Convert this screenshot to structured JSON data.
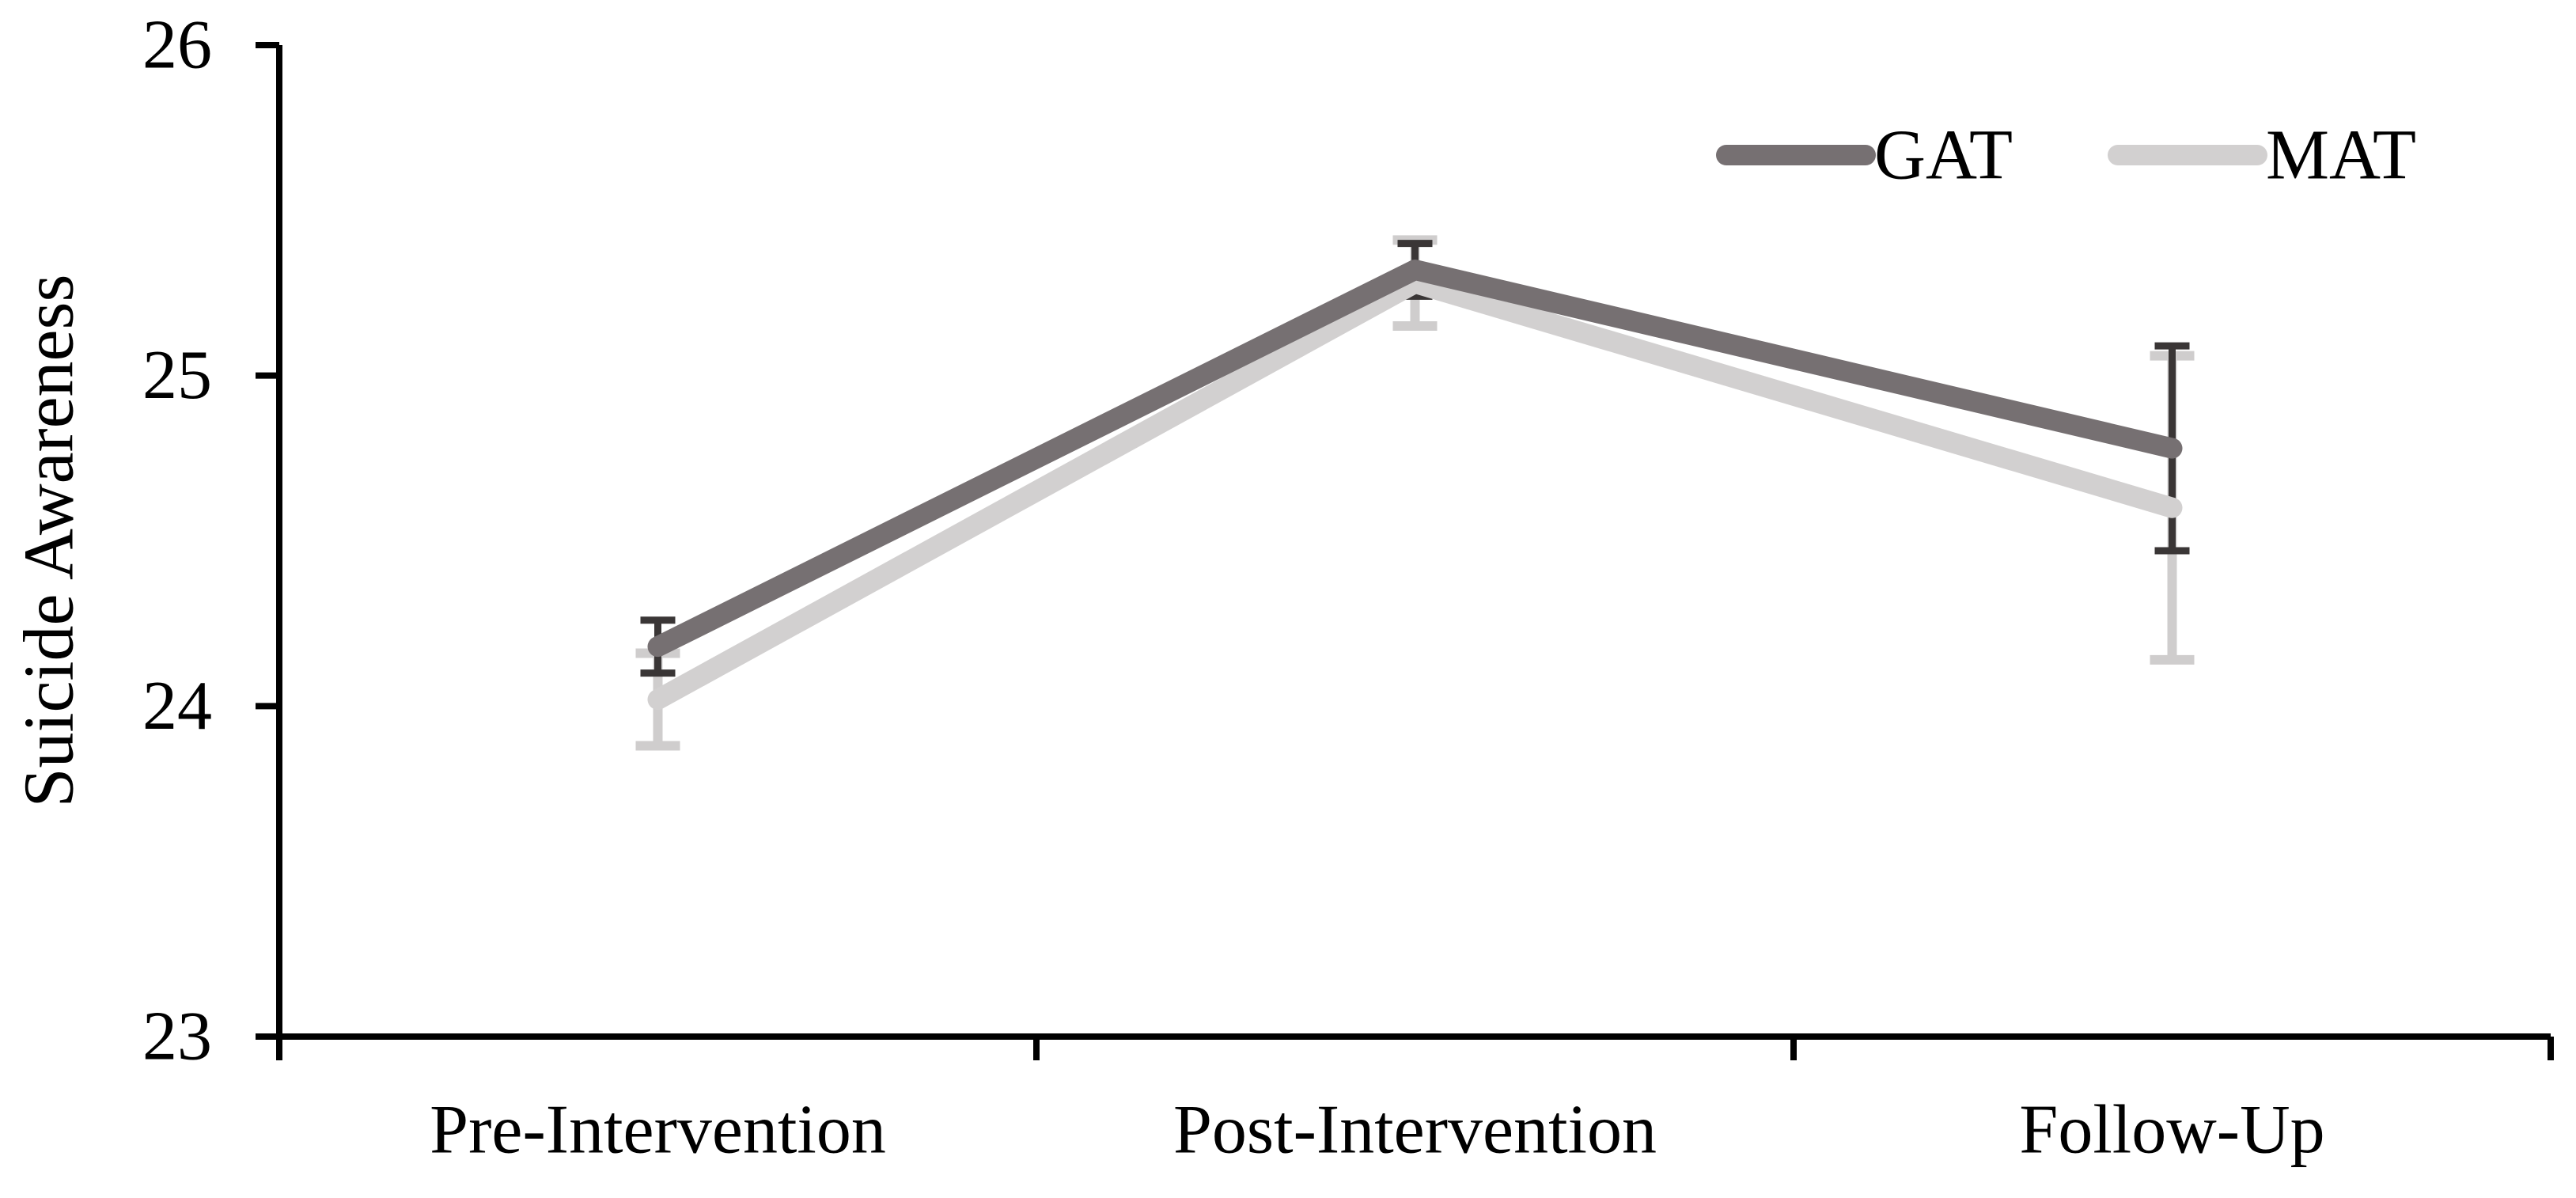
{
  "chart_data": {
    "type": "line",
    "title": "",
    "xlabel": "",
    "ylabel": "Suicide Awareness",
    "categories": [
      "Pre-Intervention",
      "Post-Intervention",
      "Follow-Up"
    ],
    "ylim": [
      23,
      26
    ],
    "yticks": [
      26,
      25,
      24,
      23
    ],
    "grid": false,
    "legend_position": "top-right",
    "series": [
      {
        "name": "GAT",
        "color": "#767072",
        "error_color": "#3a3636",
        "values": [
          24.18,
          25.32,
          24.78
        ],
        "errors": [
          0.08,
          0.08,
          0.31
        ]
      },
      {
        "name": "MAT",
        "color": "#d2d0d0",
        "error_color": "#cfcdcd",
        "values": [
          24.02,
          25.28,
          24.6
        ],
        "errors": [
          0.14,
          0.13,
          0.46
        ]
      }
    ]
  }
}
